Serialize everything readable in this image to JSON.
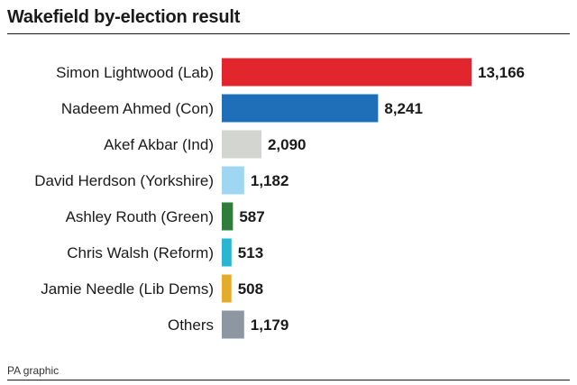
{
  "title": "Wakefield by-election result",
  "source": "PA graphic",
  "chart_data": {
    "type": "bar",
    "orientation": "horizontal",
    "title": "Wakefield by-election result",
    "categories": [
      "Simon Lightwood (Lab)",
      "Nadeem Ahmed (Con)",
      "Akef Akbar (Ind)",
      "David Herdson (Yorkshire)",
      "Ashley Routh (Green)",
      "Chris Walsh (Reform)",
      "Jamie Needle (Lib Dems)",
      "Others"
    ],
    "values": [
      13166,
      8241,
      2090,
      1182,
      587,
      513,
      508,
      1179
    ],
    "value_labels": [
      "13,166",
      "8,241",
      "2,090",
      "1,182",
      "587",
      "513",
      "508",
      "1,179"
    ],
    "colors": [
      "#e2262e",
      "#1e6fb8",
      "#d3d6d0",
      "#9fd6f2",
      "#2f7d3a",
      "#29b6d2",
      "#e3ac2a",
      "#8c97a1"
    ],
    "xlim": [
      0,
      13166
    ],
    "grid": false,
    "legend": "none"
  }
}
